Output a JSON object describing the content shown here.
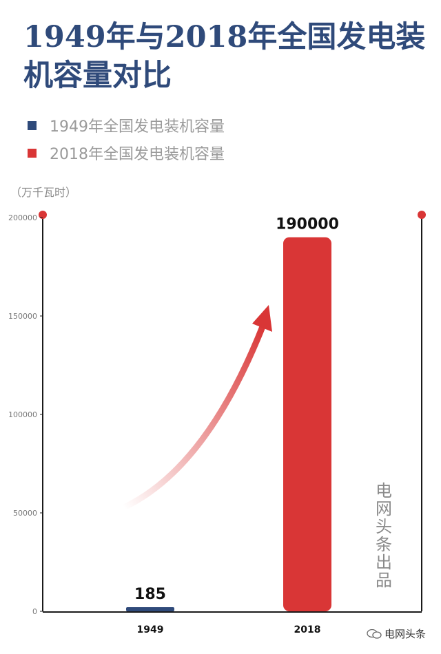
{
  "title": "1949年与2018年全国发电装机容量对比",
  "legend": [
    {
      "label": "1949年全国发电装机容量",
      "color": "#2f4a7a"
    },
    {
      "label": "2018年全国发电装机容量",
      "color": "#d93636"
    }
  ],
  "unit_label": "（万千瓦时）",
  "watermark": "电网头条出品",
  "source": {
    "icon": "wechat-icon",
    "text": "电网头条"
  },
  "colors": {
    "axis": "#1a1a1a",
    "accent": "#d93636",
    "navy": "#2f4a7a"
  },
  "chart_data": {
    "type": "bar",
    "categories": [
      "1949",
      "2018"
    ],
    "values": [
      185,
      190000
    ],
    "data_labels": [
      "185",
      "190000"
    ],
    "ylim": [
      0,
      200000
    ],
    "yticks": [
      0,
      50000,
      100000,
      150000,
      200000
    ],
    "colors": [
      "#2f4a7a",
      "#d93636"
    ],
    "grid": false,
    "legend_position": "top-left",
    "annotation": "upward-arrow"
  }
}
